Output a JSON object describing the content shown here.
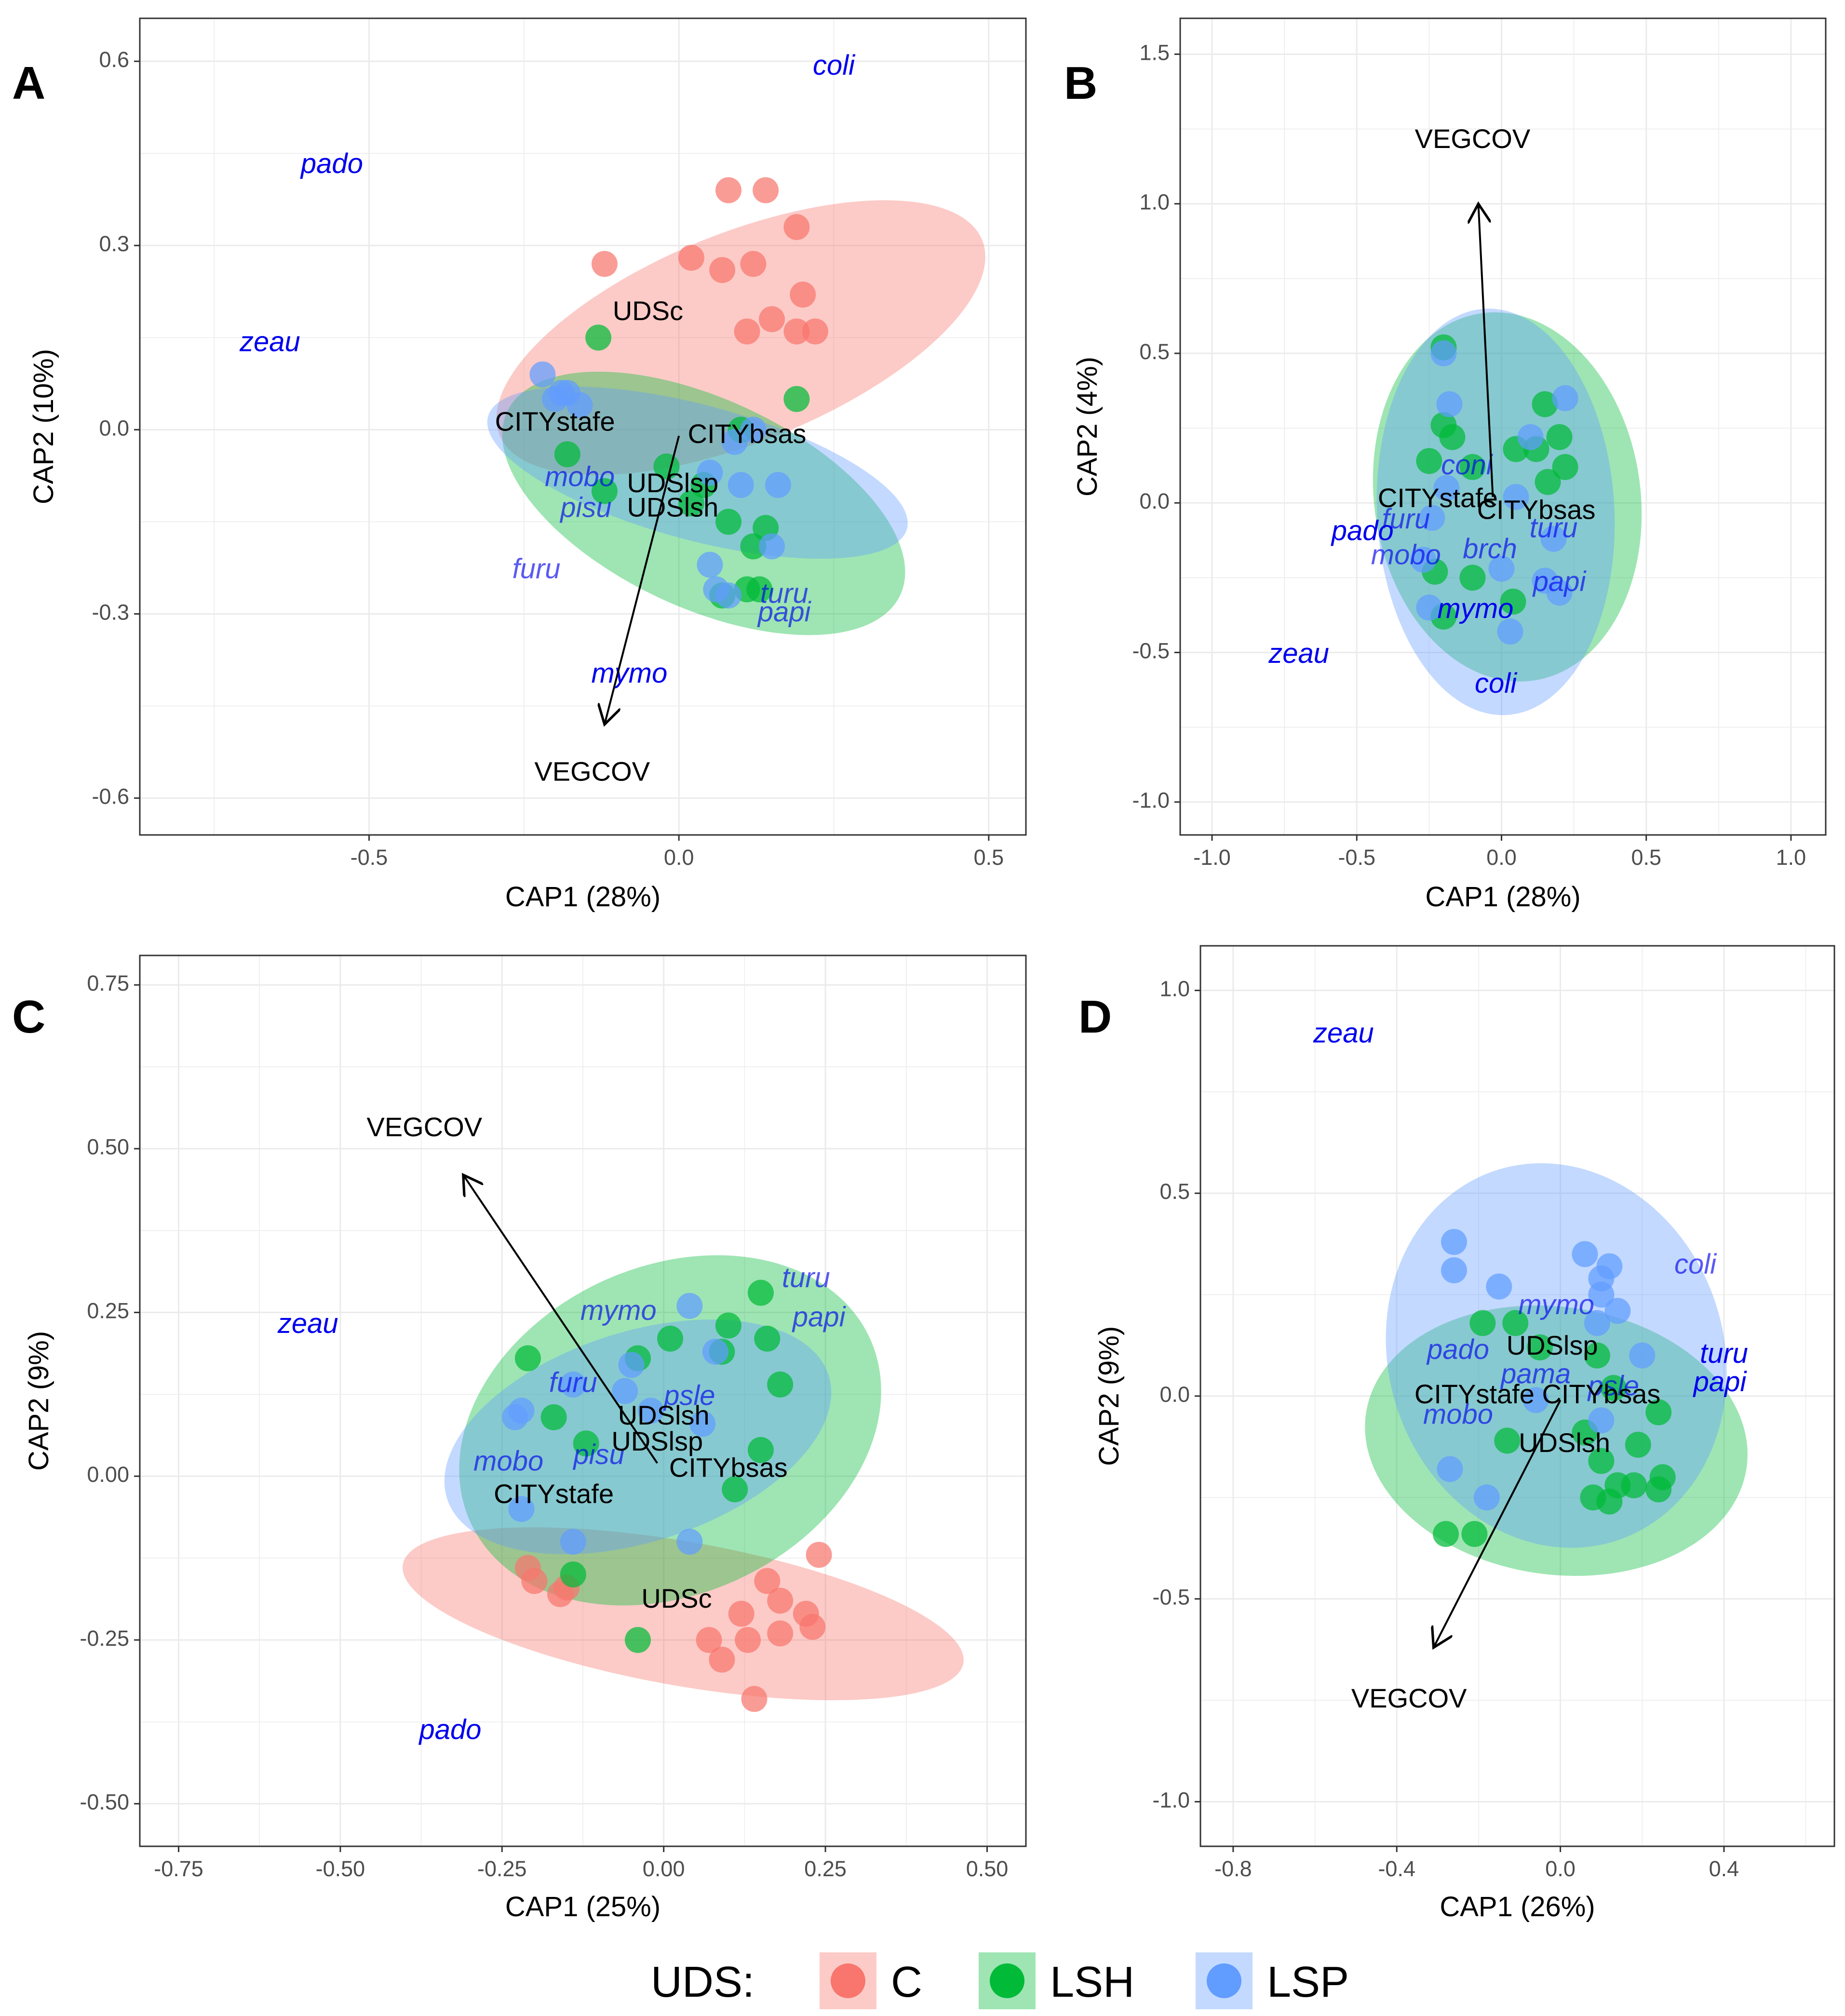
{
  "legend": {
    "title": "UDS:",
    "entries": [
      {
        "label": "C",
        "color": "#F8766D"
      },
      {
        "label": "LSH",
        "color": "#00BA38"
      },
      {
        "label": "LSP",
        "color": "#619CFF"
      }
    ]
  },
  "colors": {
    "C": "#F8766D",
    "LSH": "#00BA38",
    "LSP": "#619CFF",
    "species": "#0000ee",
    "species_faded": "#4a70e0"
  },
  "chart_data": [
    {
      "type": "scatter",
      "panel": "A",
      "xlabel": "CAP1 (28%)",
      "ylabel": "CAP2 (10%)",
      "xlim": [
        -0.87,
        0.56
      ],
      "ylim": [
        -0.66,
        0.67
      ],
      "xticks": [
        -0.5,
        0.0,
        0.5
      ],
      "xtick_labels": [
        "-0.5",
        "0.0",
        "0.5"
      ],
      "yticks": [
        -0.6,
        -0.3,
        0.0,
        0.3,
        0.6
      ],
      "ytick_labels": [
        "-0.6",
        "-0.3",
        "0.0",
        "0.3",
        "0.6"
      ],
      "ellipses": [
        {
          "group": "C",
          "cx": 0.1,
          "cy": 0.15,
          "rx": 0.42,
          "ry": 0.17,
          "angle": 22
        },
        {
          "group": "LSH",
          "cx": 0.04,
          "cy": -0.12,
          "rx": 0.35,
          "ry": 0.17,
          "angle": -25
        },
        {
          "group": "LSP",
          "cx": 0.03,
          "cy": -0.07,
          "rx": 0.35,
          "ry": 0.11,
          "angle": -15
        }
      ],
      "points": {
        "C": [
          [
            0.08,
            0.39
          ],
          [
            0.14,
            0.39
          ],
          [
            0.02,
            0.28
          ],
          [
            0.07,
            0.26
          ],
          [
            0.12,
            0.27
          ],
          [
            0.19,
            0.33
          ],
          [
            0.2,
            0.22
          ],
          [
            0.11,
            0.16
          ],
          [
            0.15,
            0.18
          ],
          [
            0.19,
            0.16
          ],
          [
            0.22,
            0.16
          ],
          [
            -0.12,
            0.27
          ]
        ],
        "LSH": [
          [
            -0.13,
            0.15
          ],
          [
            0.19,
            0.05
          ],
          [
            -0.12,
            -0.1
          ],
          [
            -0.02,
            -0.06
          ],
          [
            0.02,
            -0.12
          ],
          [
            0.08,
            -0.15
          ],
          [
            0.12,
            -0.19
          ],
          [
            0.14,
            -0.16
          ],
          [
            0.07,
            -0.27
          ],
          [
            0.11,
            -0.26
          ],
          [
            0.13,
            -0.26
          ],
          [
            -0.18,
            -0.04
          ],
          [
            0.04,
            -0.09
          ],
          [
            0.1,
            0.0
          ]
        ],
        "LSP": [
          [
            -0.22,
            0.09
          ],
          [
            -0.2,
            0.05
          ],
          [
            -0.18,
            0.06
          ],
          [
            -0.16,
            0.04
          ],
          [
            0.05,
            -0.07
          ],
          [
            0.1,
            -0.09
          ],
          [
            0.16,
            -0.09
          ],
          [
            0.15,
            -0.19
          ],
          [
            0.05,
            -0.22
          ],
          [
            0.06,
            -0.26
          ],
          [
            0.08,
            -0.27
          ],
          [
            -0.19,
            0.06
          ],
          [
            0.12,
            0.0
          ],
          [
            0.09,
            -0.02
          ]
        ]
      },
      "species": [
        {
          "label": "coli",
          "x": 0.25,
          "y": 0.59
        },
        {
          "label": "pado",
          "x": -0.56,
          "y": 0.43
        },
        {
          "label": "zeau",
          "x": -0.66,
          "y": 0.14
        },
        {
          "label": "furu",
          "x": -0.23,
          "y": -0.23
        },
        {
          "label": "mymo",
          "x": -0.08,
          "y": -0.4
        },
        {
          "label": "turu",
          "x": 0.17,
          "y": -0.27
        },
        {
          "label": "papi",
          "x": 0.17,
          "y": -0.3
        },
        {
          "label": "pisu",
          "x": -0.15,
          "y": -0.13
        },
        {
          "label": "mobo",
          "x": -0.16,
          "y": -0.08
        }
      ],
      "centroids": [
        {
          "label": "UDSc",
          "x": -0.05,
          "y": 0.19
        },
        {
          "label": "CITYstafe",
          "x": -0.2,
          "y": 0.01
        },
        {
          "label": "CITYbsas",
          "x": 0.11,
          "y": -0.01
        },
        {
          "label": "UDSlsp",
          "x": -0.01,
          "y": -0.09
        },
        {
          "label": "UDSlsh",
          "x": -0.01,
          "y": -0.13
        }
      ],
      "biplot_arrow": {
        "label": "VEGCOV",
        "x0": 0.0,
        "y0": -0.01,
        "x1": -0.12,
        "y1": -0.48,
        "label_x": -0.14,
        "label_y": -0.56
      }
    },
    {
      "type": "scatter",
      "panel": "B",
      "xlabel": "CAP1 (28%)",
      "ylabel": "CAP2 (4%)",
      "xlim": [
        -1.11,
        1.12
      ],
      "ylim": [
        -1.11,
        1.62
      ],
      "xticks": [
        -1.0,
        -0.5,
        0.0,
        0.5,
        1.0
      ],
      "xtick_labels": [
        "-1.0",
        "-0.5",
        "0.0",
        "0.5",
        "1.0"
      ],
      "yticks": [
        -1.0,
        -0.5,
        0.0,
        0.5,
        1.0,
        1.5
      ],
      "ytick_labels": [
        "-1.0",
        "-0.5",
        "0.0",
        "0.5",
        "1.0",
        "1.5"
      ],
      "ellipses": [
        {
          "group": "LSH",
          "cx": 0.02,
          "cy": 0.02,
          "rx": 0.46,
          "ry": 0.62,
          "angle": 8
        },
        {
          "group": "LSP",
          "cx": -0.02,
          "cy": -0.03,
          "rx": 0.41,
          "ry": 0.68,
          "angle": 3
        }
      ],
      "points": {
        "LSH": [
          [
            -0.2,
            0.52
          ],
          [
            -0.2,
            0.26
          ],
          [
            -0.17,
            0.22
          ],
          [
            -0.25,
            0.14
          ],
          [
            -0.1,
            0.12
          ],
          [
            0.15,
            0.33
          ],
          [
            0.2,
            0.22
          ],
          [
            0.22,
            0.12
          ],
          [
            0.12,
            0.18
          ],
          [
            0.05,
            0.18
          ],
          [
            0.16,
            0.07
          ],
          [
            -0.1,
            -0.25
          ],
          [
            -0.2,
            -0.38
          ],
          [
            0.04,
            -0.33
          ],
          [
            -0.23,
            -0.23
          ]
        ],
        "LSP": [
          [
            -0.2,
            0.5
          ],
          [
            -0.18,
            0.33
          ],
          [
            -0.19,
            0.05
          ],
          [
            0.22,
            0.35
          ],
          [
            0.1,
            0.22
          ],
          [
            0.18,
            -0.12
          ],
          [
            0.2,
            -0.3
          ],
          [
            0.15,
            -0.26
          ],
          [
            0.0,
            -0.22
          ],
          [
            -0.27,
            -0.19
          ],
          [
            0.03,
            -0.43
          ],
          [
            -0.25,
            -0.35
          ],
          [
            -0.24,
            -0.05
          ],
          [
            0.05,
            0.02
          ]
        ]
      },
      "species": [
        {
          "label": "zeau",
          "x": -0.7,
          "y": -0.51
        },
        {
          "label": "pado",
          "x": -0.48,
          "y": -0.1
        },
        {
          "label": "coli",
          "x": -0.02,
          "y": -0.61
        },
        {
          "label": "mymo",
          "x": -0.09,
          "y": -0.36
        },
        {
          "label": "papi",
          "x": 0.2,
          "y": -0.27
        },
        {
          "label": "turu",
          "x": 0.18,
          "y": -0.09
        },
        {
          "label": "mobo",
          "x": -0.33,
          "y": -0.18
        },
        {
          "label": "brch",
          "x": -0.04,
          "y": -0.16
        },
        {
          "label": "furu",
          "x": -0.33,
          "y": -0.06
        },
        {
          "label": "coni",
          "x": -0.12,
          "y": 0.12
        }
      ],
      "centroids": [
        {
          "label": "CITYstafe",
          "x": -0.22,
          "y": 0.01
        },
        {
          "label": "CITYbsas",
          "x": 0.12,
          "y": -0.03
        }
      ],
      "biplot_arrow": {
        "label": "VEGCOV",
        "x0": -0.03,
        "y0": 0.02,
        "x1": -0.08,
        "y1": 1.0,
        "label_x": -0.1,
        "label_y": 1.21
      }
    },
    {
      "type": "scatter",
      "panel": "C",
      "xlabel": "CAP1 (25%)",
      "ylabel": "CAP2 (9%)",
      "xlim": [
        -0.81,
        0.56
      ],
      "ylim": [
        -0.565,
        0.795
      ],
      "xticks": [
        -0.75,
        -0.5,
        -0.25,
        0.0,
        0.25,
        0.5
      ],
      "xtick_labels": [
        "-0.75",
        "-0.50",
        "-0.25",
        "0.00",
        "0.25",
        "0.50"
      ],
      "yticks": [
        -0.5,
        -0.25,
        0.0,
        0.25,
        0.5,
        0.75
      ],
      "ytick_labels": [
        "-0.50",
        "-0.25",
        "0.00",
        "0.25",
        "0.50",
        "0.75"
      ],
      "ellipses": [
        {
          "group": "C",
          "cx": 0.03,
          "cy": -0.21,
          "rx": 0.44,
          "ry": 0.11,
          "angle": -10
        },
        {
          "group": "LSH",
          "cx": 0.01,
          "cy": 0.07,
          "rx": 0.34,
          "ry": 0.25,
          "angle": 25
        },
        {
          "group": "LSP",
          "cx": -0.04,
          "cy": 0.06,
          "rx": 0.31,
          "ry": 0.16,
          "angle": 18
        }
      ],
      "points": {
        "C": [
          [
            0.24,
            -0.12
          ],
          [
            0.16,
            -0.16
          ],
          [
            0.18,
            -0.19
          ],
          [
            0.22,
            -0.21
          ],
          [
            0.12,
            -0.21
          ],
          [
            0.07,
            -0.25
          ],
          [
            0.13,
            -0.25
          ],
          [
            0.18,
            -0.24
          ],
          [
            0.23,
            -0.23
          ],
          [
            0.09,
            -0.28
          ],
          [
            0.14,
            -0.34
          ],
          [
            -0.21,
            -0.14
          ],
          [
            -0.2,
            -0.16
          ],
          [
            -0.15,
            -0.17
          ],
          [
            -0.16,
            -0.18
          ]
        ],
        "LSH": [
          [
            0.15,
            0.28
          ],
          [
            0.1,
            0.23
          ],
          [
            0.16,
            0.21
          ],
          [
            0.01,
            0.21
          ],
          [
            0.09,
            0.19
          ],
          [
            0.18,
            0.14
          ],
          [
            -0.21,
            0.18
          ],
          [
            -0.17,
            0.09
          ],
          [
            -0.04,
            0.18
          ],
          [
            0.15,
            0.04
          ],
          [
            -0.14,
            -0.15
          ],
          [
            -0.04,
            -0.25
          ],
          [
            0.11,
            -0.02
          ],
          [
            -0.12,
            0.05
          ]
        ],
        "LSP": [
          [
            0.04,
            0.26
          ],
          [
            -0.05,
            0.17
          ],
          [
            -0.14,
            0.14
          ],
          [
            0.08,
            0.19
          ],
          [
            -0.02,
            0.1
          ],
          [
            -0.22,
            0.1
          ],
          [
            -0.23,
            0.09
          ],
          [
            0.04,
            -0.1
          ],
          [
            -0.14,
            -0.1
          ],
          [
            -0.22,
            -0.05
          ],
          [
            0.06,
            0.08
          ],
          [
            -0.06,
            0.13
          ]
        ]
      },
      "species": [
        {
          "label": "zeau",
          "x": -0.55,
          "y": 0.23
        },
        {
          "label": "pado",
          "x": -0.33,
          "y": -0.39
        },
        {
          "label": "turu",
          "x": 0.22,
          "y": 0.3
        },
        {
          "label": "papi",
          "x": 0.24,
          "y": 0.24
        },
        {
          "label": "mymo",
          "x": -0.07,
          "y": 0.25
        },
        {
          "label": "furu",
          "x": -0.14,
          "y": 0.14
        },
        {
          "label": "psle",
          "x": 0.04,
          "y": 0.12
        },
        {
          "label": "mobo",
          "x": -0.24,
          "y": 0.02
        },
        {
          "label": "pisu",
          "x": -0.1,
          "y": 0.03
        }
      ],
      "centroids": [
        {
          "label": "UDSlsh",
          "x": 0.0,
          "y": 0.09
        },
        {
          "label": "UDSlsp",
          "x": -0.01,
          "y": 0.05
        },
        {
          "label": "CITYbsas",
          "x": 0.1,
          "y": 0.01
        },
        {
          "label": "CITYstafe",
          "x": -0.17,
          "y": -0.03
        },
        {
          "label": "UDSc",
          "x": 0.02,
          "y": -0.19
        }
      ],
      "biplot_arrow": {
        "label": "VEGCOV",
        "x0": -0.01,
        "y0": 0.02,
        "x1": -0.31,
        "y1": 0.46,
        "label_x": -0.37,
        "label_y": 0.53
      }
    },
    {
      "type": "scatter",
      "panel": "D",
      "xlabel": "CAP1 (26%)",
      "ylabel": "CAP2 (9%)",
      "xlim": [
        -0.88,
        0.67
      ],
      "ylim": [
        -1.11,
        1.11
      ],
      "xticks": [
        -0.8,
        -0.4,
        0.0,
        0.4
      ],
      "xtick_labels": [
        "-0.8",
        "-0.4",
        "0.0",
        "0.4"
      ],
      "yticks": [
        -1.0,
        -0.5,
        0.0,
        0.5,
        1.0
      ],
      "ytick_labels": [
        "-1.0",
        "-0.5",
        "0.0",
        "0.5",
        "1.0"
      ],
      "ellipses": [
        {
          "group": "LSH",
          "cx": -0.01,
          "cy": -0.11,
          "rx": 0.47,
          "ry": 0.33,
          "angle": -8
        },
        {
          "group": "LSP",
          "cx": -0.01,
          "cy": 0.1,
          "rx": 0.41,
          "ry": 0.48,
          "angle": 18
        }
      ],
      "points": {
        "LSH": [
          [
            -0.19,
            0.18
          ],
          [
            -0.11,
            0.18
          ],
          [
            -0.05,
            0.12
          ],
          [
            0.09,
            0.1
          ],
          [
            0.13,
            0.02
          ],
          [
            0.24,
            -0.04
          ],
          [
            0.19,
            -0.12
          ],
          [
            0.06,
            -0.09
          ],
          [
            0.1,
            -0.16
          ],
          [
            0.14,
            -0.22
          ],
          [
            0.08,
            -0.25
          ],
          [
            0.12,
            -0.26
          ],
          [
            0.18,
            -0.22
          ],
          [
            0.24,
            -0.23
          ],
          [
            0.25,
            -0.2
          ],
          [
            -0.28,
            -0.34
          ],
          [
            -0.21,
            -0.34
          ],
          [
            -0.13,
            -0.11
          ]
        ],
        "LSP": [
          [
            -0.26,
            0.38
          ],
          [
            -0.26,
            0.31
          ],
          [
            -0.15,
            0.27
          ],
          [
            0.06,
            0.35
          ],
          [
            0.1,
            0.29
          ],
          [
            0.12,
            0.32
          ],
          [
            0.1,
            0.25
          ],
          [
            0.14,
            0.21
          ],
          [
            0.2,
            0.1
          ],
          [
            0.09,
            0.18
          ],
          [
            -0.27,
            -0.18
          ],
          [
            -0.18,
            -0.25
          ],
          [
            -0.06,
            -0.01
          ],
          [
            0.1,
            -0.06
          ]
        ]
      },
      "species": [
        {
          "label": "zeau",
          "x": -0.53,
          "y": 0.89
        },
        {
          "label": "coli",
          "x": 0.33,
          "y": 0.32
        },
        {
          "label": "turu",
          "x": 0.4,
          "y": 0.1
        },
        {
          "label": "papi",
          "x": 0.39,
          "y": 0.03
        },
        {
          "label": "mymo",
          "x": -0.01,
          "y": 0.22
        },
        {
          "label": "pado",
          "x": -0.25,
          "y": 0.11
        },
        {
          "label": "pama",
          "x": -0.06,
          "y": 0.05
        },
        {
          "label": "psle",
          "x": 0.13,
          "y": 0.02
        },
        {
          "label": "mobo",
          "x": -0.25,
          "y": -0.05
        }
      ],
      "centroids": [
        {
          "label": "UDSlsp",
          "x": -0.02,
          "y": 0.12
        },
        {
          "label": "CITYstafe",
          "x": -0.21,
          "y": 0.0
        },
        {
          "label": "CITYbsas",
          "x": 0.1,
          "y": 0.0
        },
        {
          "label": "UDSlsh",
          "x": 0.01,
          "y": -0.12
        }
      ],
      "biplot_arrow": {
        "label": "VEGCOV",
        "x0": 0.0,
        "y0": -0.01,
        "x1": -0.31,
        "y1": -0.62,
        "label_x": -0.37,
        "label_y": -0.75
      }
    }
  ]
}
